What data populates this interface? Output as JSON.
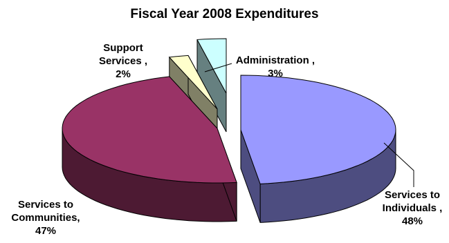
{
  "chart_data": {
    "type": "pie",
    "title": "Fiscal Year 2008 Expenditures",
    "slices": [
      {
        "key": "individuals",
        "label_lines": [
          "Services to",
          "Individuals ,",
          "48%"
        ],
        "value": 48,
        "top_color": "#9999ff",
        "side_color": "#4d4d80"
      },
      {
        "key": "communities",
        "label_lines": [
          "Services to",
          "Communities,",
          "47%"
        ],
        "value": 47,
        "top_color": "#993366",
        "side_color": "#4d1a33"
      },
      {
        "key": "support",
        "label_lines": [
          "Support",
          "Services ,",
          "2%"
        ],
        "value": 2,
        "top_color": "#ffffcc",
        "side_color": "#808066"
      },
      {
        "key": "administration",
        "label_lines": [
          "Administration ,",
          "3%"
        ],
        "value": 3,
        "top_color": "#ccffff",
        "side_color": "#668080"
      }
    ],
    "legend": "none",
    "style": "3d-exploded"
  }
}
